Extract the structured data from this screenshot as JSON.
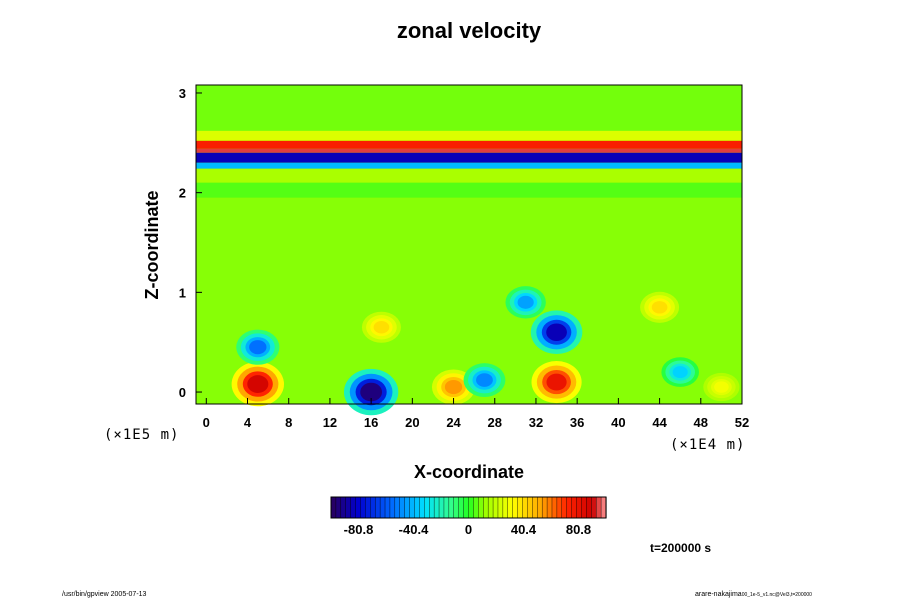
{
  "chart_data": {
    "type": "heatmap",
    "title": "zonal velocity",
    "xlabel": "X-coordinate",
    "ylabel": "Z-coordinate",
    "x_scale_label": "(×1E4 m)",
    "y_scale_label": "(×1E5 m)",
    "xlim": [
      -1,
      52
    ],
    "ylim": [
      -0.12,
      3.08
    ],
    "x_ticks": [
      "0",
      "4",
      "8",
      "12",
      "16",
      "20",
      "24",
      "28",
      "32",
      "36",
      "40",
      "44",
      "48",
      "52"
    ],
    "y_ticks": [
      "0",
      "1",
      "2",
      "3"
    ],
    "x_tick_values": [
      0,
      4,
      8,
      12,
      16,
      20,
      24,
      28,
      32,
      36,
      40,
      44,
      48,
      52
    ],
    "y_tick_values": [
      0,
      1,
      2,
      3
    ],
    "colorbar": {
      "range": [
        -101,
        101
      ],
      "tick_labels": [
        "-80.8",
        "-40.4",
        "0",
        "40.4",
        "80.8"
      ],
      "tick_values": [
        -80.8,
        -40.4,
        0,
        40.4,
        80.8
      ]
    },
    "background_value": 10,
    "layers": [
      {
        "z_from": 2.62,
        "z_to": 3.08,
        "value": 8
      },
      {
        "z_from": 2.52,
        "z_to": 2.62,
        "value": 25
      },
      {
        "z_from": 2.44,
        "z_to": 2.52,
        "value": 75
      },
      {
        "z_from": 2.4,
        "z_to": 2.44,
        "value": 95
      },
      {
        "z_from": 2.3,
        "z_to": 2.4,
        "value": -85
      },
      {
        "z_from": 2.24,
        "z_to": 2.3,
        "value": -40
      },
      {
        "z_from": 2.1,
        "z_to": 2.24,
        "value": 15
      },
      {
        "z_from": 1.95,
        "z_to": 2.1,
        "value": 5
      }
    ],
    "features": [
      {
        "x": 5,
        "z": 0.08,
        "value": 88
      },
      {
        "x": 16,
        "z": 0.0,
        "value": -95
      },
      {
        "x": 34,
        "z": 0.1,
        "value": 80
      },
      {
        "x": 34,
        "z": 0.6,
        "value": -85
      },
      {
        "x": 31,
        "z": 0.9,
        "value": -45
      },
      {
        "x": 5,
        "z": 0.45,
        "value": -55
      },
      {
        "x": 17,
        "z": 0.65,
        "value": 40
      },
      {
        "x": 44,
        "z": 0.85,
        "value": 40
      },
      {
        "x": 46,
        "z": 0.2,
        "value": -35
      },
      {
        "x": 24,
        "z": 0.05,
        "value": 55
      },
      {
        "x": 27,
        "z": 0.12,
        "value": -50
      },
      {
        "x": 50,
        "z": 0.05,
        "value": 30
      }
    ],
    "time_label": "t=200000 s"
  },
  "footer": {
    "left": "/usr/bin/gpview 2005-07-13",
    "right": "arare-nakajima",
    "right_small": "00_1e-5_v1.nc@Vel3,t=200000"
  }
}
